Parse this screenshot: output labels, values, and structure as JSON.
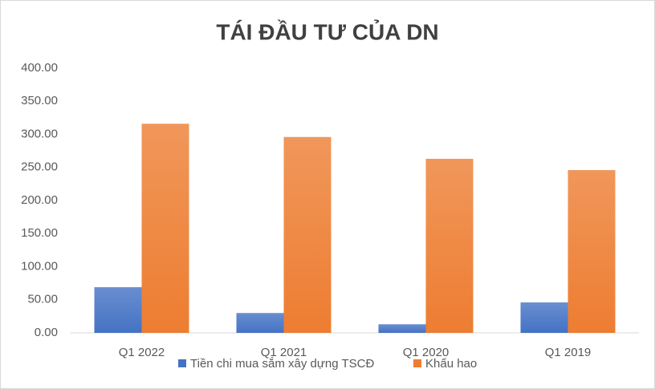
{
  "chart_data": {
    "type": "bar",
    "title": "TÁI ĐẦU TƯ CỦA DN",
    "categories": [
      "Q1 2022",
      "Q1 2021",
      "Q1 2020",
      "Q1 2019"
    ],
    "series": [
      {
        "name": "Tiền chi mua sắm xây dựng TSCĐ",
        "color": "#4472c4",
        "values": [
          69,
          30,
          13,
          46
        ]
      },
      {
        "name": "Khấu hao",
        "color": "#ed7d31",
        "values": [
          316,
          296,
          263,
          246
        ]
      }
    ],
    "ylim": [
      0,
      400
    ],
    "yticks": [
      {
        "value": 0,
        "label": "0.00"
      },
      {
        "value": 50,
        "label": "50.00"
      },
      {
        "value": 100,
        "label": "100.00"
      },
      {
        "value": 150,
        "label": "150.00"
      },
      {
        "value": 200,
        "label": "200.00"
      },
      {
        "value": 250,
        "label": "250.00"
      },
      {
        "value": 300,
        "label": "300.00"
      },
      {
        "value": 350,
        "label": "350.00"
      },
      {
        "value": 400,
        "label": "400.00"
      }
    ],
    "grid": false,
    "legend": "bottom"
  }
}
